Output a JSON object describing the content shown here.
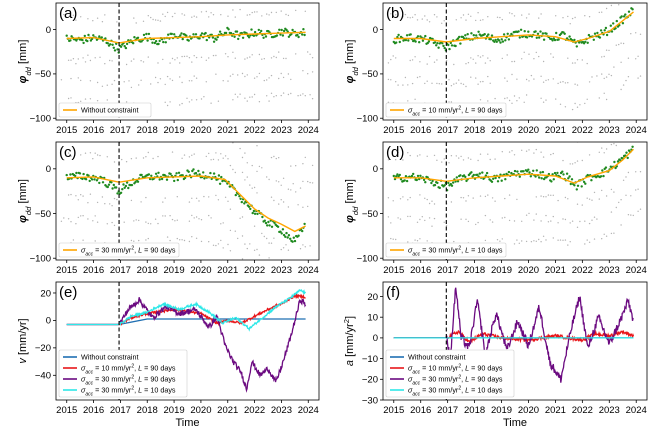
{
  "figure": {
    "x_axis_label": "Time",
    "vertical_marker_year": 2016.95,
    "xlim": [
      2014.6,
      2024.4
    ],
    "x_ticks": [
      2015,
      2016,
      2017,
      2018,
      2019,
      2020,
      2021,
      2022,
      2023,
      2024
    ],
    "colors": {
      "scatter_gray": "#9a9a9a",
      "scatter_green": "#1f8a1f",
      "orange": "#ffa500",
      "blue": "#1f6fb2",
      "red": "#e8161a",
      "purple": "#6b0a80",
      "cyan": "#2ee8e8"
    }
  },
  "chart_data": [
    {
      "panel": "(a)",
      "type": "scatter",
      "ylabel": "φdd [mm]",
      "ylim": [
        -102,
        30
      ],
      "y_ticks": [
        0,
        -50,
        -100
      ],
      "legend": [
        {
          "name": "Without constraint",
          "color": "#ffa500"
        }
      ],
      "fit": [
        [
          2015.0,
          -10
        ],
        [
          2016.0,
          -9
        ],
        [
          2016.95,
          -15
        ],
        [
          2018.0,
          -10
        ],
        [
          2019.0,
          -9
        ],
        [
          2020.0,
          -8
        ],
        [
          2021.0,
          -6
        ],
        [
          2022.0,
          -5
        ],
        [
          2023.0,
          -4
        ],
        [
          2023.9,
          -3
        ]
      ],
      "green": [
        [
          2015.0,
          -10
        ],
        [
          2015.5,
          -12
        ],
        [
          2016.0,
          -9
        ],
        [
          2016.5,
          -13
        ],
        [
          2016.95,
          -22
        ],
        [
          2017.5,
          -12
        ],
        [
          2018.0,
          -8
        ],
        [
          2018.5,
          -14
        ],
        [
          2019.0,
          -5
        ],
        [
          2019.5,
          -11
        ],
        [
          2020.0,
          -6
        ],
        [
          2020.5,
          -10
        ],
        [
          2021.0,
          -2
        ],
        [
          2021.5,
          -8
        ],
        [
          2022.0,
          -3
        ],
        [
          2022.5,
          -6
        ],
        [
          2023.0,
          -2
        ],
        [
          2023.5,
          -5
        ],
        [
          2023.9,
          -3
        ]
      ]
    },
    {
      "panel": "(b)",
      "type": "scatter",
      "ylabel": "φdd [mm]",
      "ylim": [
        -102,
        30
      ],
      "y_ticks": [
        0,
        -50,
        -100
      ],
      "legend": [
        {
          "name": "σacc = 10 mm/yr², L = 90 days",
          "color": "#ffa500"
        }
      ],
      "fit": [
        [
          2015.0,
          -10
        ],
        [
          2016.0,
          -10
        ],
        [
          2016.95,
          -14
        ],
        [
          2018.0,
          -10
        ],
        [
          2019.0,
          -8
        ],
        [
          2020.0,
          -6
        ],
        [
          2021.0,
          -8
        ],
        [
          2021.7,
          -14
        ],
        [
          2022.2,
          -10
        ],
        [
          2023.0,
          -2
        ],
        [
          2023.5,
          10
        ],
        [
          2023.9,
          20
        ]
      ],
      "green": [
        [
          2015.0,
          -11
        ],
        [
          2015.6,
          -9
        ],
        [
          2016.2,
          -12
        ],
        [
          2016.95,
          -20
        ],
        [
          2017.5,
          -11
        ],
        [
          2018.2,
          -6
        ],
        [
          2018.8,
          -12
        ],
        [
          2019.5,
          -5
        ],
        [
          2020.2,
          -4
        ],
        [
          2020.8,
          -10
        ],
        [
          2021.3,
          -6
        ],
        [
          2021.8,
          -18
        ],
        [
          2022.3,
          -9
        ],
        [
          2022.8,
          -4
        ],
        [
          2023.2,
          4
        ],
        [
          2023.6,
          14
        ],
        [
          2023.9,
          22
        ]
      ]
    },
    {
      "panel": "(c)",
      "type": "scatter",
      "ylabel": "φdd [mm]",
      "ylim": [
        -102,
        30
      ],
      "y_ticks": [
        0,
        -50,
        -100
      ],
      "legend": [
        {
          "name": "σacc = 30 mm/yr², L = 90 days",
          "color": "#ffa500"
        }
      ],
      "fit": [
        [
          2015.0,
          -10
        ],
        [
          2016.0,
          -9
        ],
        [
          2016.95,
          -15
        ],
        [
          2018.0,
          -10
        ],
        [
          2019.0,
          -9
        ],
        [
          2020.0,
          -8
        ],
        [
          2020.9,
          -12
        ],
        [
          2021.5,
          -30
        ],
        [
          2022.0,
          -45
        ],
        [
          2022.5,
          -55
        ],
        [
          2023.0,
          -62
        ],
        [
          2023.5,
          -70
        ],
        [
          2023.9,
          -64
        ]
      ],
      "green": [
        [
          2015.0,
          -10
        ],
        [
          2015.6,
          -8
        ],
        [
          2016.3,
          -12
        ],
        [
          2016.95,
          -25
        ],
        [
          2017.6,
          -12
        ],
        [
          2018.3,
          -8
        ],
        [
          2019.0,
          -10
        ],
        [
          2019.7,
          -5
        ],
        [
          2020.4,
          -7
        ],
        [
          2021.0,
          -18
        ],
        [
          2021.5,
          -32
        ],
        [
          2022.0,
          -48
        ],
        [
          2022.5,
          -60
        ],
        [
          2023.0,
          -68
        ],
        [
          2023.5,
          -82
        ],
        [
          2023.9,
          -62
        ]
      ]
    },
    {
      "panel": "(d)",
      "type": "scatter",
      "ylabel": "φdd [mm]",
      "ylim": [
        -102,
        30
      ],
      "y_ticks": [
        0,
        -50,
        -100
      ],
      "legend": [
        {
          "name": "σacc = 30 mm/yr², L = 10 days",
          "color": "#ffa500"
        }
      ],
      "fit": [
        [
          2015.0,
          -10
        ],
        [
          2016.0,
          -10
        ],
        [
          2016.95,
          -14
        ],
        [
          2018.0,
          -10
        ],
        [
          2019.0,
          -8
        ],
        [
          2020.0,
          -6
        ],
        [
          2021.0,
          -8
        ],
        [
          2021.7,
          -16
        ],
        [
          2022.2,
          -9
        ],
        [
          2023.0,
          -2
        ],
        [
          2023.5,
          10
        ],
        [
          2023.9,
          22
        ]
      ],
      "green": [
        [
          2015.0,
          -11
        ],
        [
          2015.6,
          -9
        ],
        [
          2016.2,
          -12
        ],
        [
          2016.95,
          -20
        ],
        [
          2017.5,
          -11
        ],
        [
          2018.2,
          -6
        ],
        [
          2018.8,
          -12
        ],
        [
          2019.5,
          -5
        ],
        [
          2020.2,
          -4
        ],
        [
          2020.8,
          -10
        ],
        [
          2021.3,
          -6
        ],
        [
          2021.8,
          -19
        ],
        [
          2022.3,
          -9
        ],
        [
          2022.8,
          -4
        ],
        [
          2023.2,
          4
        ],
        [
          2023.6,
          14
        ],
        [
          2023.9,
          22
        ]
      ]
    },
    {
      "panel": "(e)",
      "type": "line",
      "ylabel": "v [mm/yr]",
      "ylim": [
        -58,
        28
      ],
      "y_ticks": [
        20,
        0,
        -20,
        -40
      ],
      "series": [
        {
          "name": "Without constraint",
          "color": "#1f6fb2",
          "points": [
            [
              2015.0,
              -3
            ],
            [
              2016.95,
              -3
            ],
            [
              2018.0,
              1
            ],
            [
              2019.0,
              1
            ],
            [
              2020.0,
              1
            ],
            [
              2021.0,
              1
            ],
            [
              2022.0,
              1
            ],
            [
              2023.0,
              1
            ],
            [
              2023.9,
              1
            ]
          ]
        },
        {
          "name": "σacc = 10 mm/yr², L = 90 days",
          "color": "#e8161a",
          "points": [
            [
              2015.0,
              -3
            ],
            [
              2016.95,
              -3
            ],
            [
              2017.4,
              2
            ],
            [
              2018.0,
              5
            ],
            [
              2019.0,
              8
            ],
            [
              2020.0,
              5
            ],
            [
              2020.6,
              -2
            ],
            [
              2021.0,
              0
            ],
            [
              2021.5,
              -2
            ],
            [
              2022.0,
              3
            ],
            [
              2022.5,
              8
            ],
            [
              2023.0,
              12
            ],
            [
              2023.5,
              18
            ],
            [
              2023.9,
              17
            ]
          ]
        },
        {
          "name": "σacc = 30 mm/yr², L = 90 days",
          "color": "#6b0a80",
          "points": [
            [
              2015.0,
              -3
            ],
            [
              2016.95,
              -3
            ],
            [
              2017.3,
              8
            ],
            [
              2017.7,
              15
            ],
            [
              2018.2,
              2
            ],
            [
              2018.7,
              10
            ],
            [
              2019.2,
              5
            ],
            [
              2019.8,
              8
            ],
            [
              2020.3,
              -5
            ],
            [
              2020.6,
              3
            ],
            [
              2020.9,
              -18
            ],
            [
              2021.2,
              -30
            ],
            [
              2021.5,
              -38
            ],
            [
              2021.7,
              -50
            ],
            [
              2021.9,
              -30
            ],
            [
              2022.2,
              -40
            ],
            [
              2022.5,
              -35
            ],
            [
              2022.8,
              -45
            ],
            [
              2023.1,
              -28
            ],
            [
              2023.4,
              -8
            ],
            [
              2023.7,
              15
            ],
            [
              2023.9,
              12
            ]
          ]
        },
        {
          "name": "σacc = 30 mm/yr², L = 10 days",
          "color": "#2ee8e8",
          "points": [
            [
              2015.0,
              -3
            ],
            [
              2016.95,
              -3
            ],
            [
              2017.4,
              3
            ],
            [
              2018.0,
              6
            ],
            [
              2018.6,
              12
            ],
            [
              2019.2,
              8
            ],
            [
              2019.8,
              12
            ],
            [
              2020.3,
              6
            ],
            [
              2020.8,
              -2
            ],
            [
              2021.3,
              2
            ],
            [
              2021.8,
              -6
            ],
            [
              2022.3,
              2
            ],
            [
              2022.8,
              10
            ],
            [
              2023.3,
              16
            ],
            [
              2023.7,
              22
            ],
            [
              2023.9,
              20
            ]
          ]
        }
      ]
    },
    {
      "panel": "(f)",
      "type": "line",
      "ylabel": "a [mm/yr²]",
      "ylim": [
        -30,
        27
      ],
      "y_ticks": [
        20,
        10,
        0,
        -10,
        -20,
        -30
      ],
      "series": [
        {
          "name": "Without constraint",
          "color": "#1f6fb2",
          "points": [
            [
              2015.0,
              0
            ],
            [
              2023.9,
              0
            ]
          ]
        },
        {
          "name": "σacc = 10 mm/yr², L = 90 days",
          "color": "#e8161a",
          "points": [
            [
              2015.0,
              0
            ],
            [
              2016.95,
              0
            ],
            [
              2017.4,
              3
            ],
            [
              2017.8,
              -2
            ],
            [
              2018.3,
              2
            ],
            [
              2019.0,
              0
            ],
            [
              2020.0,
              -1
            ],
            [
              2021.0,
              1
            ],
            [
              2022.0,
              -1
            ],
            [
              2022.5,
              2
            ],
            [
              2023.0,
              1
            ],
            [
              2023.5,
              3
            ],
            [
              2023.9,
              1
            ]
          ]
        },
        {
          "name": "σacc = 30 mm/yr², L = 90 days",
          "color": "#6b0a80",
          "points": [
            [
              2015.0,
              0
            ],
            [
              2016.95,
              0
            ],
            [
              2017.1,
              -10
            ],
            [
              2017.3,
              25
            ],
            [
              2017.5,
              0
            ],
            [
              2017.8,
              -5
            ],
            [
              2018.1,
              18
            ],
            [
              2018.4,
              -8
            ],
            [
              2018.8,
              12
            ],
            [
              2019.2,
              -6
            ],
            [
              2019.6,
              8
            ],
            [
              2020.0,
              -4
            ],
            [
              2020.4,
              15
            ],
            [
              2020.8,
              -12
            ],
            [
              2021.2,
              -20
            ],
            [
              2021.6,
              5
            ],
            [
              2021.9,
              20
            ],
            [
              2022.2,
              -5
            ],
            [
              2022.6,
              10
            ],
            [
              2023.0,
              -3
            ],
            [
              2023.4,
              8
            ],
            [
              2023.7,
              18
            ],
            [
              2023.9,
              8
            ]
          ]
        },
        {
          "name": "σacc = 30 mm/yr², L = 10 days",
          "color": "#2ee8e8",
          "points": [
            [
              2015.0,
              0
            ],
            [
              2023.9,
              0
            ]
          ]
        }
      ]
    }
  ]
}
